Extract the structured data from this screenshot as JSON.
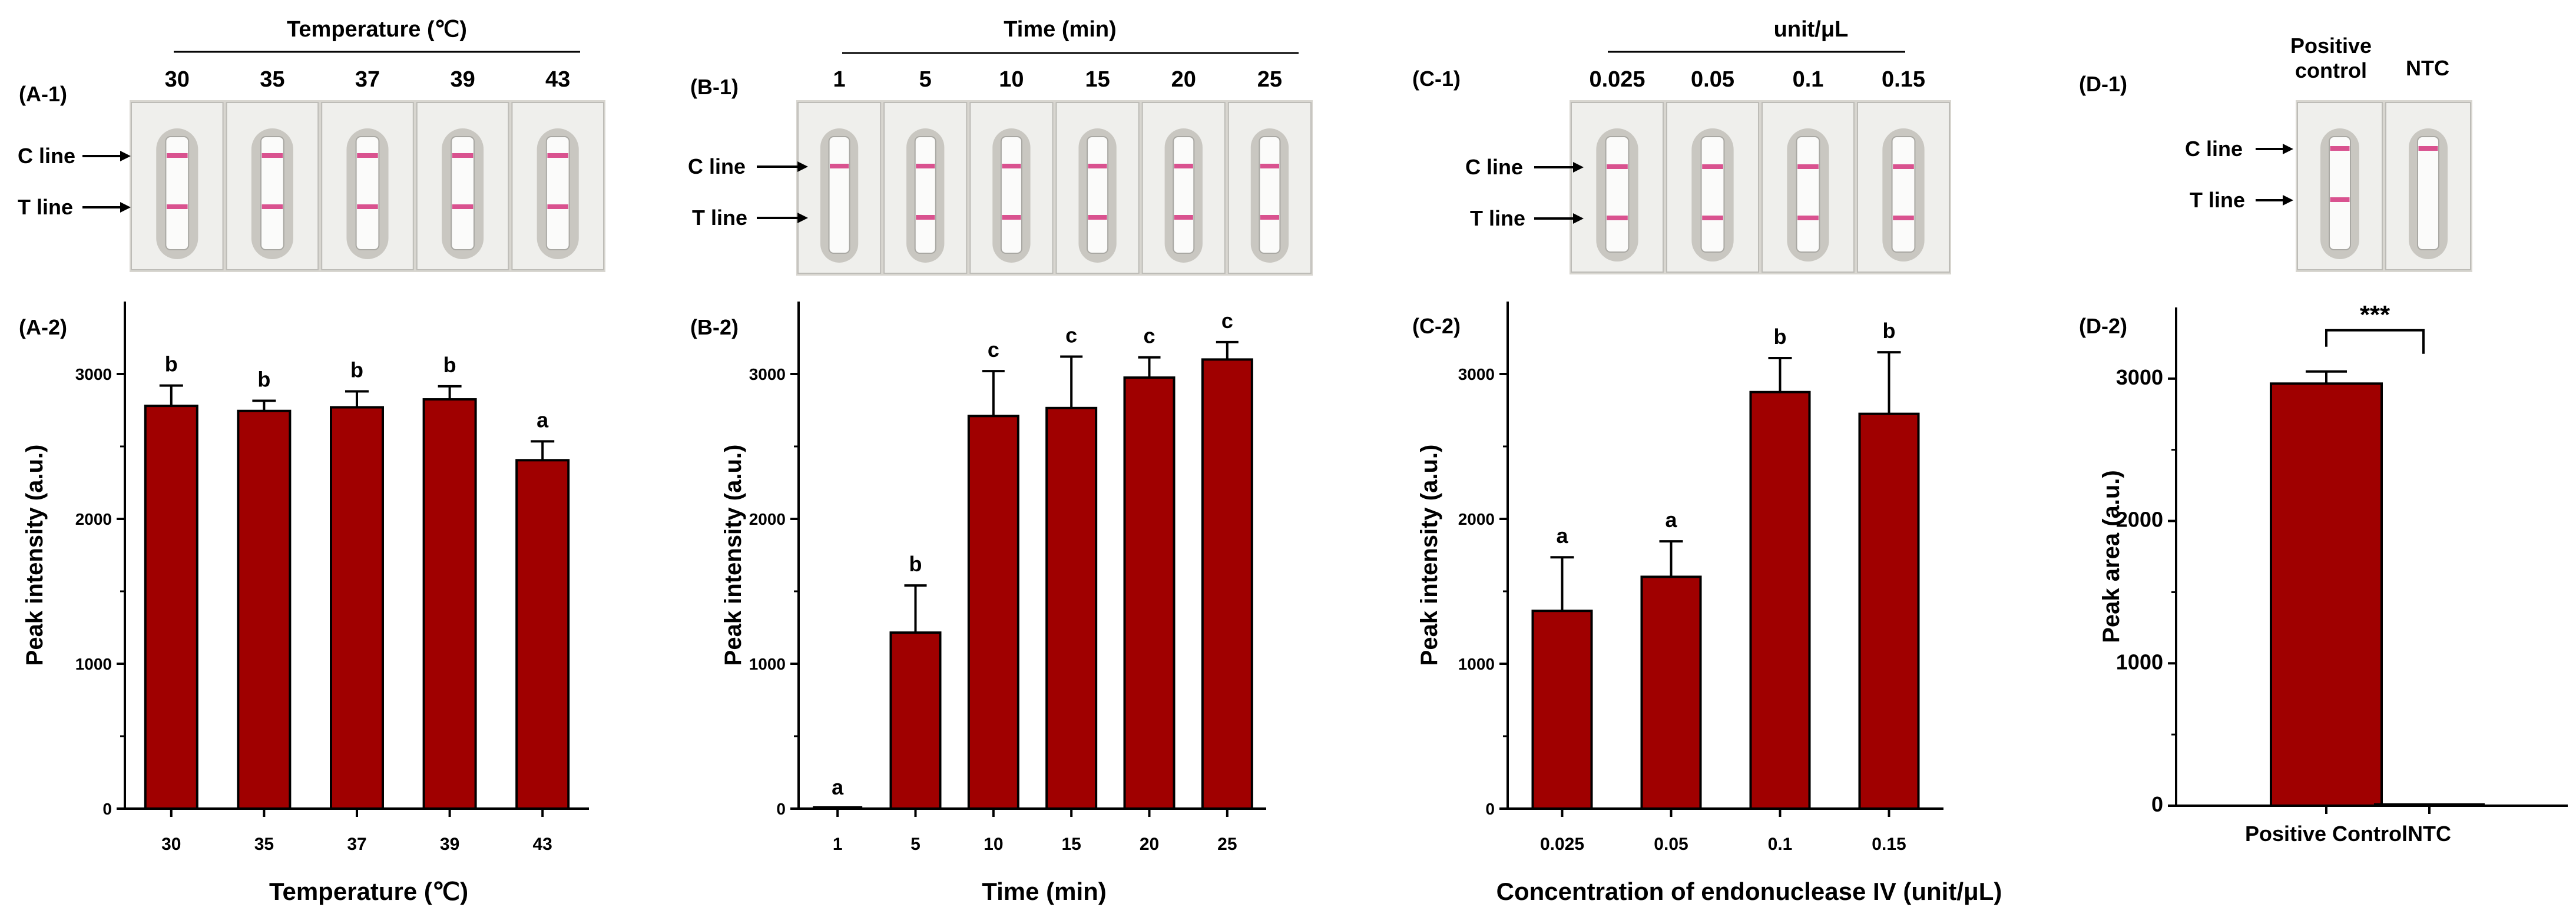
{
  "colors": {
    "bar": "#A00000",
    "strip_bg": "#d8d6d0",
    "cassette": "#efefec",
    "line_pink": "#d9528f"
  },
  "labels": {
    "c_line": "C line",
    "t_line": "T line"
  },
  "panel_a": {
    "tag1": "(A-1)",
    "tag2": "(A-2)",
    "group_title": "Temperature (℃)",
    "strips": [
      {
        "label": "30",
        "c": true,
        "t": true
      },
      {
        "label": "35",
        "c": true,
        "t": true
      },
      {
        "label": "37",
        "c": true,
        "t": true
      },
      {
        "label": "39",
        "c": true,
        "t": true
      },
      {
        "label": "43",
        "c": true,
        "t": true
      }
    ]
  },
  "panel_b": {
    "tag1": "(B-1)",
    "tag2": "(B-2)",
    "group_title": "Time (min)",
    "strips": [
      {
        "label": "1",
        "c": true,
        "t": false
      },
      {
        "label": "5",
        "c": true,
        "t": true
      },
      {
        "label": "10",
        "c": true,
        "t": true
      },
      {
        "label": "15",
        "c": true,
        "t": true
      },
      {
        "label": "20",
        "c": true,
        "t": true
      },
      {
        "label": "25",
        "c": true,
        "t": true
      }
    ]
  },
  "panel_c": {
    "tag1": "(C-1)",
    "tag2": "(C-2)",
    "group_title": "unit/μL",
    "strips": [
      {
        "label": "0.025",
        "c": true,
        "t": true
      },
      {
        "label": "0.05",
        "c": true,
        "t": true
      },
      {
        "label": "0.1",
        "c": true,
        "t": true
      },
      {
        "label": "0.15",
        "c": true,
        "t": true
      }
    ]
  },
  "panel_d": {
    "tag1": "(D-1)",
    "tag2": "(D-2)",
    "col1_line1": "Positive",
    "col1_line2": "control",
    "col2": "NTC",
    "strips": [
      {
        "label": "Positive control",
        "c": true,
        "t": true
      },
      {
        "label": "NTC",
        "c": true,
        "t": false
      }
    ]
  },
  "chart_data": [
    {
      "type": "bar",
      "title": "",
      "xlabel": "Temperature (℃)",
      "ylabel": "Peak intensity (a.u.)",
      "categories": [
        "30",
        "35",
        "37",
        "39",
        "43"
      ],
      "values": [
        2780,
        2745,
        2770,
        2825,
        2405
      ],
      "errors": [
        140,
        70,
        110,
        90,
        130
      ],
      "letters": [
        "b",
        "b",
        "b",
        "b",
        "a"
      ],
      "ylim": [
        0,
        3500
      ],
      "yticks": [
        "0",
        "1000",
        "2000",
        "3000"
      ]
    },
    {
      "type": "bar",
      "title": "",
      "xlabel": "Time (min)",
      "ylabel": "Peak intensity (a.u.)",
      "categories": [
        "1",
        "5",
        "10",
        "15",
        "20",
        "25"
      ],
      "values": [
        0,
        1215,
        2710,
        2765,
        2975,
        3100
      ],
      "errors": [
        0,
        325,
        310,
        355,
        140,
        120
      ],
      "letters": [
        "a",
        "b",
        "c",
        "c",
        "c",
        "c"
      ],
      "ylim": [
        0,
        3500
      ],
      "yticks": [
        "0",
        "1000",
        "2000",
        "3000"
      ]
    },
    {
      "type": "bar",
      "title": "",
      "xlabel": "Concentration of endonuclease IV (unit/μL)",
      "ylabel": "Peak intensity (a.u.)",
      "categories": [
        "0.025",
        "0.05",
        "0.1",
        "0.15"
      ],
      "values": [
        1365,
        1600,
        2875,
        2725
      ],
      "errors": [
        370,
        245,
        235,
        425
      ],
      "letters": [
        "a",
        "a",
        "b",
        "b"
      ],
      "ylim": [
        0,
        3500
      ],
      "yticks": [
        "0",
        "1000",
        "2000",
        "3000"
      ]
    },
    {
      "type": "bar",
      "title": "",
      "xlabel": "",
      "ylabel": "Peak area (a.u.)",
      "categories": [
        "Positive Control",
        "NTC"
      ],
      "values": [
        2965,
        0
      ],
      "errors": [
        85,
        0
      ],
      "letters": [
        "",
        ""
      ],
      "significance": "***",
      "ylim": [
        0,
        3500
      ],
      "yticks": [
        "0",
        "1000",
        "2000",
        "3000"
      ]
    }
  ]
}
